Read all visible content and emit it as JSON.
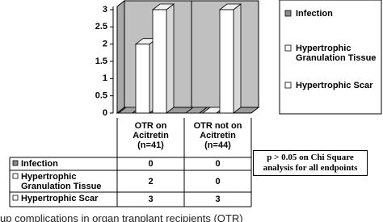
{
  "chart_data": {
    "type": "bar",
    "categories": [
      "OTR on\nAcitretin\n(n=41)",
      "OTR not on\nAcitretin\n(n=44)"
    ],
    "series": [
      {
        "name": "Infection",
        "color": "#8c8c8c",
        "values": [
          0,
          0
        ]
      },
      {
        "name": "Hypertrophic Granulation Tissue",
        "color": "#ffffff",
        "values": [
          2,
          0
        ]
      },
      {
        "name": "Hypertrophic Scar",
        "color": "#ffffff",
        "values": [
          3,
          3
        ]
      }
    ],
    "ylim": [
      0,
      3
    ],
    "yticks": [
      0,
      0.5,
      1,
      1.5,
      2,
      2.5,
      3
    ],
    "annotation": "p > 0.05 on Chi Square analysis for all endpoints",
    "caption": "up complications in organ tranplant recipients (OTR)"
  }
}
